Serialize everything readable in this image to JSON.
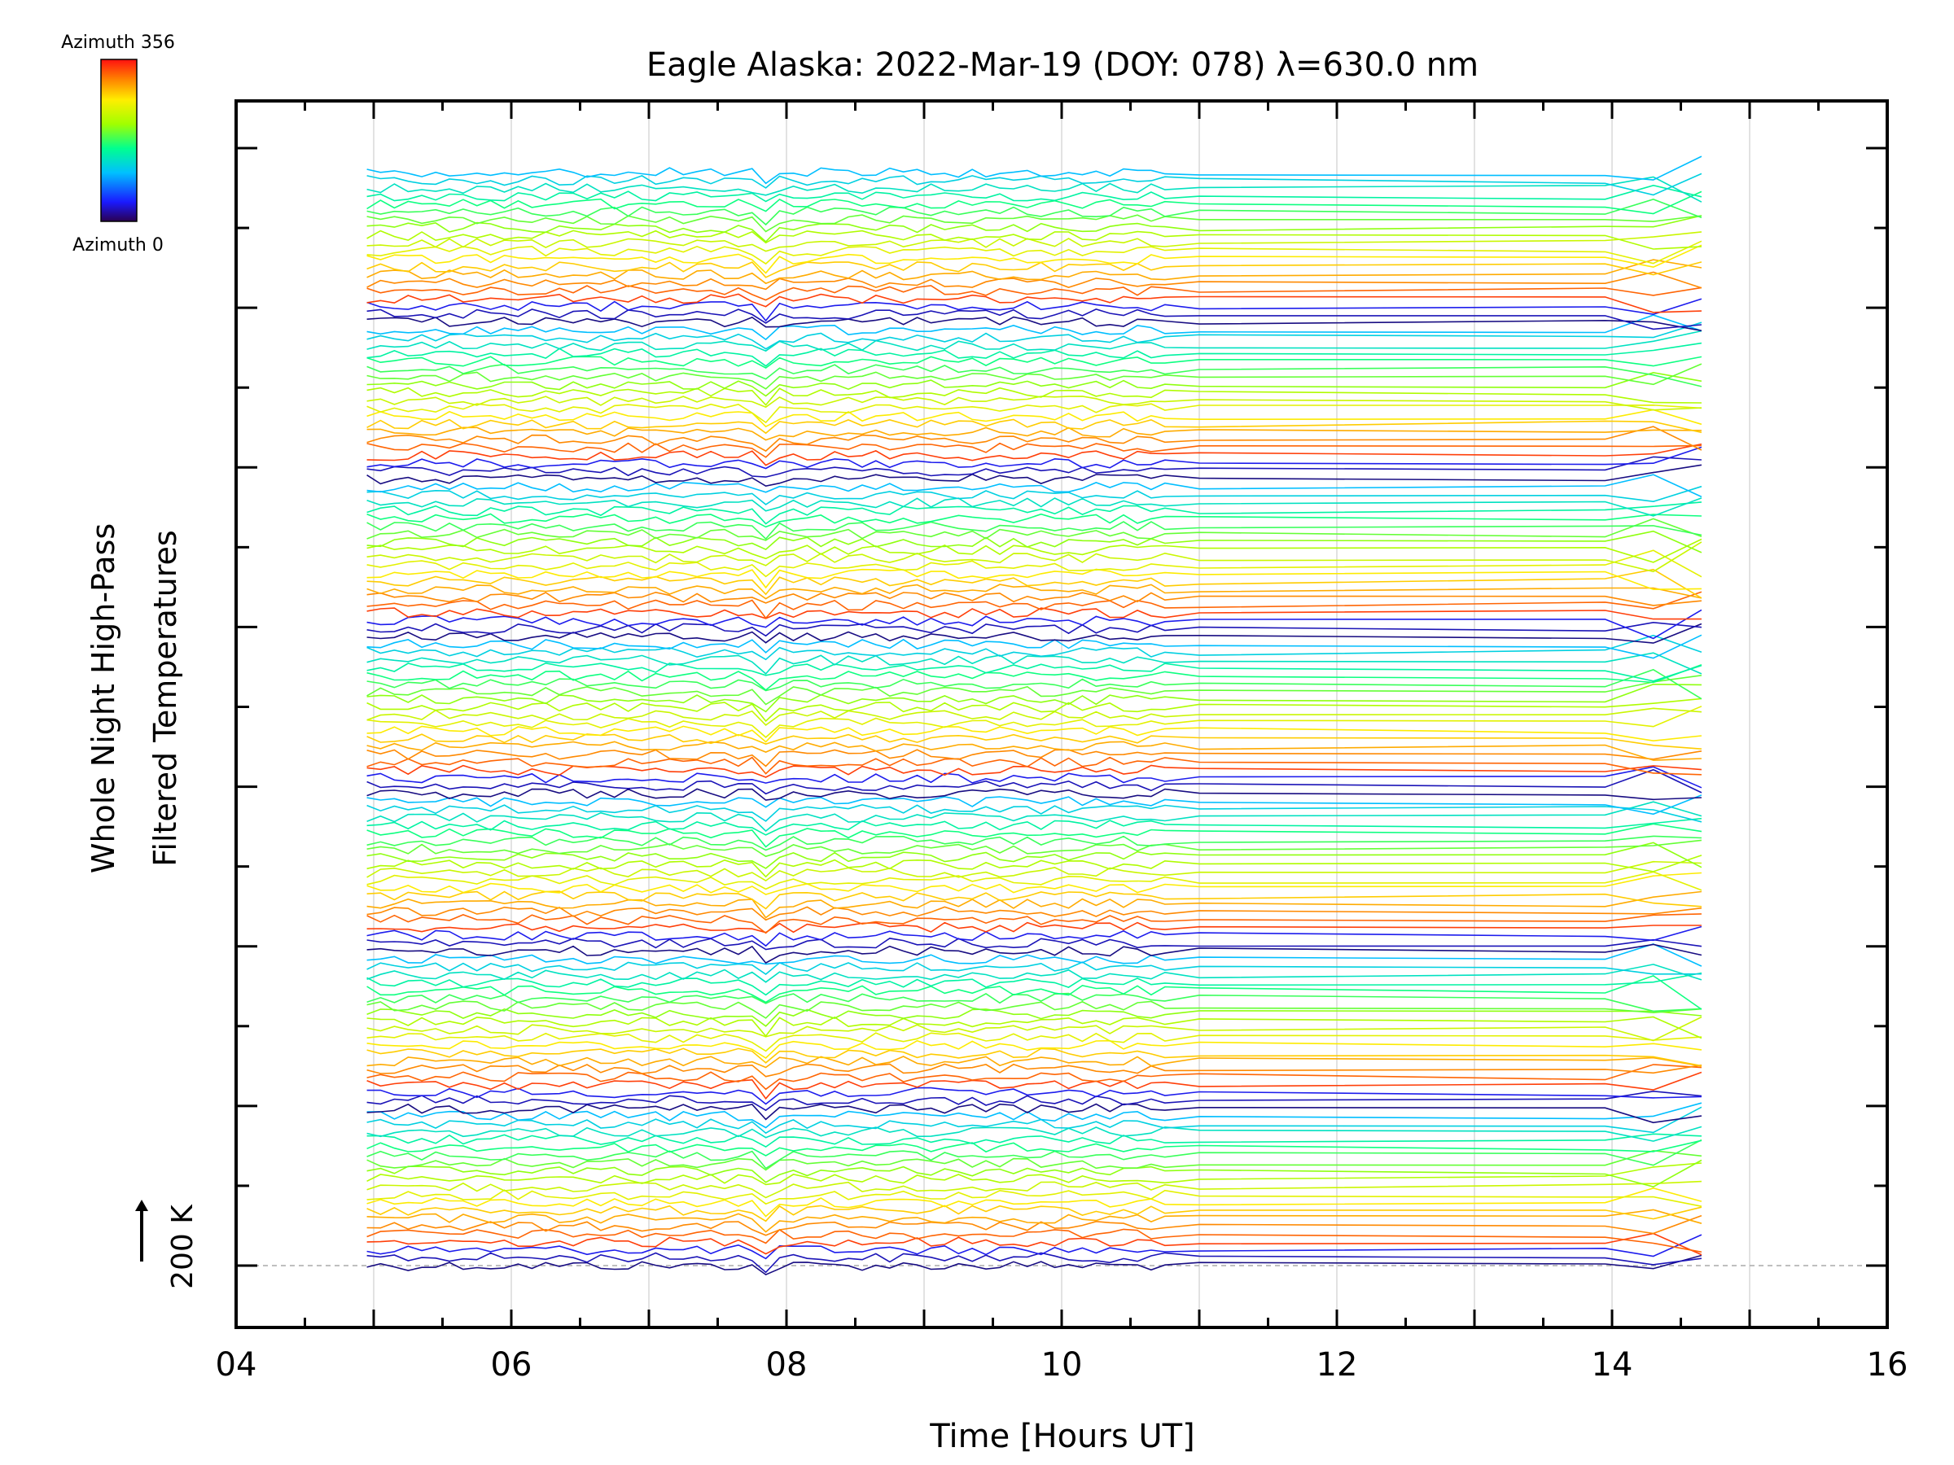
{
  "chart_data": {
    "type": "line",
    "title": "Eagle Alaska: 2022-Mar-19 (DOY: 078) λ=630.0 nm",
    "xlabel": "Time [Hours UT]",
    "ylabel_line1": "Whole Night High-Pass",
    "ylabel_line2": "Filtered Temperatures",
    "xlim": [
      4,
      16
    ],
    "x_ticks": [
      "04",
      "06",
      "08",
      "10",
      "12",
      "14",
      "16"
    ],
    "x_gridlines": [
      5,
      6,
      7,
      8,
      9,
      10,
      11,
      12,
      13,
      14,
      15
    ],
    "scale_bar_label": "200 K",
    "colorbar": {
      "top_label": "Azimuth 356",
      "bottom_label": "Azimuth 0",
      "colormap": "rainbow",
      "min": 0,
      "max": 356
    },
    "n_series": 140,
    "azimuth_cycle_period": 20,
    "series_offset_spacing": "stacked",
    "sample_times_start": 4.95,
    "sample_times_end_dense": 10.8,
    "sample_interval_hours": 0.1,
    "sample_times_sparse": [
      11.0,
      13.95,
      14.3,
      14.65
    ],
    "notable_disturbance_hour": 7.85,
    "colors": {
      "baseline_reference": "#aaaaaa",
      "grid": "#d8d8d8",
      "axis": "#000000"
    }
  }
}
